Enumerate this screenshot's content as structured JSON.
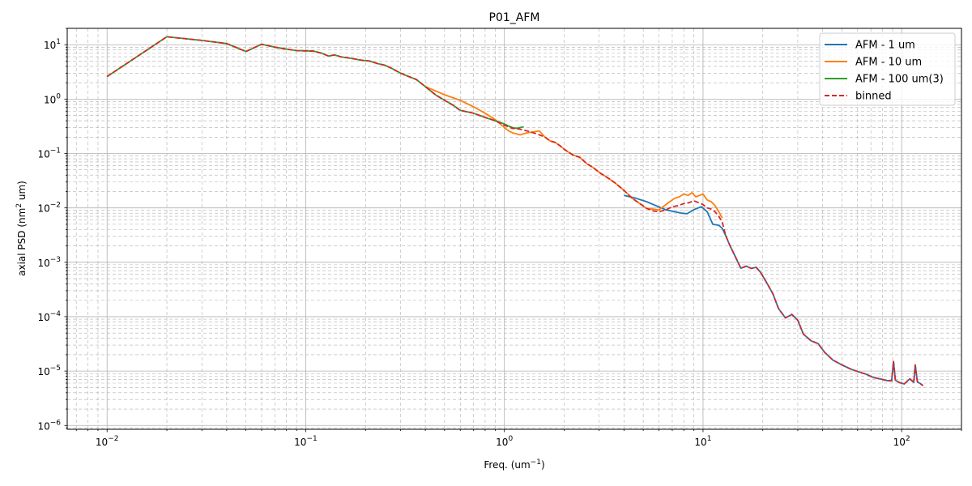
{
  "chart_data": {
    "type": "line",
    "title": "P01_AFM",
    "xlabel_base": "Freq. (um",
    "xlabel_sup": "−1",
    "xlabel_tail": ")",
    "ylabel_base": "axial PSD (nm",
    "ylabel_sup": "2",
    "ylabel_tail": " um)",
    "xscale": "log",
    "yscale": "log",
    "xlim": [
      0.0063,
      200
    ],
    "ylim": [
      8.5e-07,
      20
    ],
    "grid": "major and minor, dashed minor",
    "legend_position": "top-right",
    "x_ticks": [
      {
        "value": 0.01,
        "base": "10",
        "exp": "−2"
      },
      {
        "value": 0.1,
        "base": "10",
        "exp": "−1"
      },
      {
        "value": 1,
        "base": "10",
        "exp": "0"
      },
      {
        "value": 10,
        "base": "10",
        "exp": "1"
      },
      {
        "value": 100,
        "base": "10",
        "exp": "2"
      }
    ],
    "y_ticks": [
      {
        "value": 10,
        "base": "10",
        "exp": "1"
      },
      {
        "value": 1,
        "base": "10",
        "exp": "0"
      },
      {
        "value": 0.1,
        "base": "10",
        "exp": "−1"
      },
      {
        "value": 0.01,
        "base": "10",
        "exp": "−2"
      },
      {
        "value": 0.001,
        "base": "10",
        "exp": "−3"
      },
      {
        "value": 0.0001,
        "base": "10",
        "exp": "−4"
      },
      {
        "value": 1e-05,
        "base": "10",
        "exp": "−5"
      },
      {
        "value": 1e-06,
        "base": "10",
        "exp": "−6"
      }
    ],
    "series": [
      {
        "name": "AFM - 1 um",
        "color": "#1f77b4",
        "dash": "solid",
        "x": [
          4.0,
          4.6,
          5.2,
          5.8,
          6.5,
          7.2,
          7.8,
          8.3,
          9.0,
          9.8,
          10.5,
          11.2,
          12.0,
          12.5,
          13.0,
          13.6,
          14.5,
          15.5,
          16.5,
          17.5,
          18.5,
          19.5,
          21.0,
          22.5,
          24.0,
          26.0,
          28.0,
          30.0,
          32.0,
          35.0,
          38.0,
          41.0,
          45.0,
          50.0,
          55.0,
          60.0,
          66.0,
          72.0,
          78.0,
          84.0,
          89.0,
          91.0,
          93.0,
          97.0,
          103.0,
          110.0,
          115.0,
          117.0,
          120.0,
          124.0,
          128.0
        ],
        "y": [
          0.017,
          0.015,
          0.013,
          0.011,
          0.0092,
          0.0085,
          0.008,
          0.0078,
          0.0093,
          0.0105,
          0.0085,
          0.005,
          0.0048,
          0.0042,
          0.0031,
          0.0021,
          0.0013,
          0.00078,
          0.00085,
          0.00077,
          0.00081,
          0.00065,
          0.00041,
          0.00026,
          0.00014,
          9.5e-05,
          0.00011,
          8.6e-05,
          4.8e-05,
          3.6e-05,
          3.2e-05,
          2.2e-05,
          1.6e-05,
          1.3e-05,
          1.1e-05,
          9.8e-06,
          8.8e-06,
          7.6e-06,
          7.2e-06,
          6.7e-06,
          6.6e-06,
          1.5e-05,
          6.8e-06,
          6.2e-06,
          5.8e-06,
          7.2e-06,
          6.2e-06,
          1.3e-05,
          6.3e-06,
          5.9e-06,
          5.4e-06
        ]
      },
      {
        "name": "AFM - 10 um",
        "color": "#ff7f0e",
        "dash": "solid",
        "x": [
          0.4,
          0.5,
          0.6,
          0.7,
          0.8,
          0.9,
          1.0,
          1.05,
          1.1,
          1.2,
          1.3,
          1.4,
          1.5,
          1.6,
          1.7,
          1.8,
          1.9,
          2.0,
          2.2,
          2.4,
          2.6,
          2.8,
          3.0,
          3.3,
          3.6,
          4.0,
          4.4,
          4.8,
          5.2,
          5.6,
          6.0,
          6.4,
          6.8,
          7.2,
          7.6,
          8.0,
          8.4,
          8.8,
          9.2,
          9.6,
          10.0,
          10.5,
          11.0,
          11.5,
          12.0,
          12.5
        ],
        "y": [
          1.7,
          1.2,
          0.95,
          0.72,
          0.55,
          0.42,
          0.3,
          0.26,
          0.24,
          0.22,
          0.24,
          0.25,
          0.26,
          0.2,
          0.17,
          0.16,
          0.14,
          0.12,
          0.095,
          0.085,
          0.065,
          0.055,
          0.045,
          0.036,
          0.029,
          0.021,
          0.015,
          0.012,
          0.0098,
          0.0095,
          0.0092,
          0.011,
          0.013,
          0.015,
          0.016,
          0.018,
          0.017,
          0.019,
          0.016,
          0.017,
          0.018,
          0.014,
          0.013,
          0.011,
          0.0085,
          0.0065
        ]
      },
      {
        "name": "AFM - 100 um(3)",
        "color": "#2ca02c",
        "dash": "solid",
        "x": [
          0.01,
          0.02,
          0.03,
          0.04,
          0.05,
          0.06,
          0.07,
          0.08,
          0.09,
          0.1,
          0.11,
          0.12,
          0.13,
          0.14,
          0.15,
          0.17,
          0.19,
          0.21,
          0.23,
          0.25,
          0.27,
          0.3,
          0.33,
          0.36,
          0.4,
          0.45,
          0.5,
          0.55,
          0.6,
          0.7,
          0.8,
          0.9,
          1.0,
          1.05,
          1.1,
          1.15,
          1.2,
          1.25
        ],
        "y": [
          2.6,
          14,
          12,
          10.5,
          7.5,
          10.2,
          9.0,
          8.3,
          7.8,
          7.7,
          7.6,
          7.0,
          6.2,
          6.5,
          6.0,
          5.6,
          5.2,
          5.0,
          4.5,
          4.2,
          3.7,
          3.0,
          2.6,
          2.3,
          1.7,
          1.2,
          0.95,
          0.78,
          0.62,
          0.55,
          0.46,
          0.4,
          0.35,
          0.32,
          0.3,
          0.29,
          0.3,
          0.31
        ]
      },
      {
        "name": "binned",
        "color": "#d62728",
        "dash": "dashed",
        "x": [
          0.01,
          0.02,
          0.03,
          0.04,
          0.05,
          0.06,
          0.07,
          0.08,
          0.09,
          0.1,
          0.11,
          0.12,
          0.13,
          0.14,
          0.15,
          0.17,
          0.19,
          0.21,
          0.23,
          0.25,
          0.27,
          0.3,
          0.33,
          0.36,
          0.4,
          0.45,
          0.5,
          0.55,
          0.6,
          0.7,
          0.8,
          0.9,
          1.0,
          1.1,
          1.2,
          1.3,
          1.4,
          1.5,
          1.6,
          1.7,
          1.8,
          1.9,
          2.0,
          2.2,
          2.4,
          2.6,
          2.8,
          3.0,
          3.3,
          3.6,
          4.0,
          4.4,
          4.8,
          5.2,
          5.6,
          6.0,
          6.5,
          7.0,
          7.5,
          8.0,
          8.5,
          9.0,
          9.5,
          10.0,
          10.5,
          11.0,
          11.5,
          12.0,
          12.5,
          13.0,
          13.6,
          14.5,
          15.5,
          16.5,
          17.5,
          18.5,
          19.5,
          21.0,
          22.5,
          24.0,
          26.0,
          28.0,
          30.0,
          32.0,
          35.0,
          38.0,
          41.0,
          45.0,
          50.0,
          55.0,
          60.0,
          66.0,
          72.0,
          78.0,
          84.0,
          89.0,
          91.0,
          93.0,
          97.0,
          103.0,
          110.0,
          115.0,
          117.0,
          120.0,
          124.0,
          128.0
        ],
        "y": [
          2.6,
          14,
          12,
          10.5,
          7.5,
          10.2,
          9.0,
          8.3,
          7.8,
          7.7,
          7.6,
          7.0,
          6.2,
          6.5,
          6.0,
          5.6,
          5.2,
          5.0,
          4.5,
          4.2,
          3.7,
          3.0,
          2.6,
          2.3,
          1.7,
          1.2,
          0.95,
          0.78,
          0.62,
          0.55,
          0.46,
          0.4,
          0.33,
          0.29,
          0.28,
          0.26,
          0.24,
          0.22,
          0.2,
          0.17,
          0.16,
          0.14,
          0.12,
          0.095,
          0.085,
          0.065,
          0.055,
          0.045,
          0.036,
          0.029,
          0.021,
          0.015,
          0.012,
          0.0098,
          0.0088,
          0.0085,
          0.0092,
          0.0105,
          0.011,
          0.012,
          0.0125,
          0.0135,
          0.0125,
          0.0115,
          0.01,
          0.0095,
          0.0085,
          0.007,
          0.0055,
          0.0031,
          0.0021,
          0.0013,
          0.00078,
          0.00085,
          0.00077,
          0.00081,
          0.00065,
          0.00041,
          0.00026,
          0.00014,
          9.5e-05,
          0.00011,
          8.6e-05,
          4.8e-05,
          3.6e-05,
          3.2e-05,
          2.2e-05,
          1.6e-05,
          1.3e-05,
          1.1e-05,
          9.8e-06,
          8.8e-06,
          7.6e-06,
          7.2e-06,
          6.7e-06,
          6.6e-06,
          1.5e-05,
          6.8e-06,
          6.2e-06,
          5.8e-06,
          7.2e-06,
          6.2e-06,
          1.3e-05,
          6.3e-06,
          5.9e-06,
          5.4e-06
        ]
      }
    ]
  }
}
